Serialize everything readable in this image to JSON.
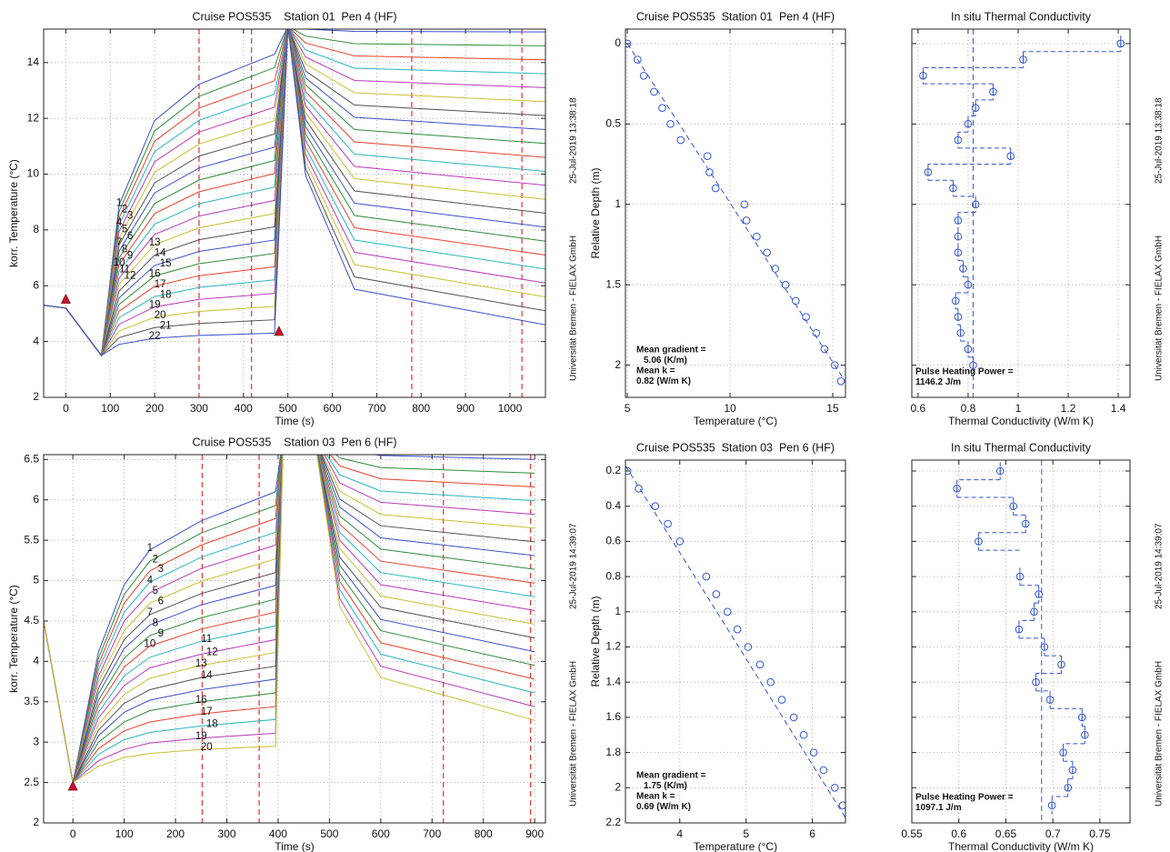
{
  "chart_data": [
    {
      "type": "line",
      "title": "Cruise POS535    Station 01  Pen 4 (HF)",
      "x_label": "Time (s)",
      "y_label": "korr. Temperature (°C)",
      "xlim": [
        -50,
        1080
      ],
      "ylim": [
        2,
        15.2
      ],
      "xticks": [
        0,
        100,
        200,
        300,
        400,
        500,
        600,
        700,
        800,
        900,
        1000
      ],
      "yticks": [
        2,
        4,
        6,
        8,
        10,
        12,
        14
      ],
      "grid": true,
      "colors": [
        "#3a4fc8",
        "#2e8b3a",
        "#e8412c",
        "#28b6c0",
        "#b83ab8",
        "#c8c030",
        "#505050"
      ],
      "x": [
        -50,
        0,
        80,
        120,
        200,
        300,
        470,
        500,
        540,
        650,
        1080
      ],
      "series": [
        {
          "name": "1",
          "values": [
            5.3,
            5.2,
            3.5,
            8.9,
            11.92,
            13.22,
            14.3,
            15.3,
            15.2,
            15.12,
            15.1
          ]
        },
        {
          "name": "2",
          "values": [
            5.3,
            5.2,
            3.5,
            8.66,
            11.55,
            12.79,
            13.82,
            15.3,
            14.95,
            14.68,
            14.6
          ]
        },
        {
          "name": "3",
          "values": [
            5.3,
            5.2,
            3.5,
            8.43,
            11.18,
            12.37,
            13.35,
            15.3,
            14.7,
            14.24,
            14.1
          ]
        },
        {
          "name": "4",
          "values": [
            5.3,
            5.2,
            3.5,
            8.19,
            10.81,
            11.93,
            12.87,
            15.3,
            14.45,
            13.8,
            13.6
          ]
        },
        {
          "name": "5",
          "values": [
            5.3,
            5.2,
            3.5,
            7.95,
            10.44,
            11.51,
            12.4,
            15.3,
            14.2,
            13.36,
            13.1
          ]
        },
        {
          "name": "6",
          "values": [
            5.3,
            5.2,
            3.5,
            7.71,
            10.07,
            11.08,
            11.92,
            15.3,
            13.95,
            12.92,
            12.6
          ]
        },
        {
          "name": "7",
          "values": [
            5.3,
            5.2,
            3.5,
            7.47,
            9.69,
            10.65,
            11.44,
            15.3,
            13.7,
            12.48,
            12.1
          ]
        },
        {
          "name": "8",
          "values": [
            5.3,
            5.2,
            3.5,
            7.24,
            9.33,
            10.22,
            10.97,
            15.3,
            13.45,
            12.04,
            11.6
          ]
        },
        {
          "name": "9",
          "values": [
            5.3,
            5.2,
            3.5,
            7.0,
            8.95,
            9.79,
            10.49,
            15.3,
            13.2,
            11.6,
            11.1
          ]
        },
        {
          "name": "10",
          "values": [
            5.3,
            5.2,
            3.5,
            6.76,
            8.59,
            9.37,
            10.02,
            15.3,
            12.95,
            11.16,
            10.6
          ]
        },
        {
          "name": "11",
          "values": [
            5.3,
            5.2,
            3.5,
            6.52,
            8.21,
            8.94,
            9.54,
            15.3,
            12.7,
            10.72,
            10.1
          ]
        },
        {
          "name": "12",
          "values": [
            5.3,
            5.2,
            3.5,
            6.28,
            7.84,
            8.5,
            9.06,
            15.3,
            12.45,
            10.28,
            9.6
          ]
        },
        {
          "name": "13",
          "values": [
            5.3,
            5.2,
            3.5,
            6.05,
            7.47,
            8.08,
            8.59,
            15.3,
            12.2,
            9.84,
            9.1
          ]
        },
        {
          "name": "14",
          "values": [
            5.3,
            5.2,
            3.5,
            5.81,
            7.1,
            7.65,
            8.11,
            15.3,
            11.95,
            9.4,
            8.6
          ]
        },
        {
          "name": "15",
          "values": [
            5.3,
            5.2,
            3.5,
            5.57,
            6.73,
            7.23,
            7.64,
            15.3,
            11.7,
            8.96,
            8.1
          ]
        },
        {
          "name": "16",
          "values": [
            5.3,
            5.2,
            3.5,
            5.33,
            6.35,
            6.79,
            7.16,
            15.3,
            11.45,
            8.52,
            7.6
          ]
        },
        {
          "name": "17",
          "values": [
            5.3,
            5.2,
            3.5,
            5.09,
            5.98,
            6.36,
            6.68,
            15.3,
            11.2,
            8.08,
            7.1
          ]
        },
        {
          "name": "18",
          "values": [
            5.3,
            5.2,
            3.5,
            4.86,
            5.61,
            5.94,
            6.21,
            15.3,
            10.95,
            7.64,
            6.6
          ]
        },
        {
          "name": "19",
          "values": [
            5.3,
            5.2,
            3.5,
            4.62,
            5.24,
            5.51,
            5.73,
            15.3,
            10.7,
            7.2,
            6.1
          ]
        },
        {
          "name": "20",
          "values": [
            5.3,
            5.2,
            3.5,
            4.38,
            4.87,
            5.08,
            5.26,
            15.3,
            10.45,
            6.76,
            5.6
          ]
        },
        {
          "name": "21",
          "values": [
            5.3,
            5.2,
            3.5,
            4.14,
            4.5,
            4.65,
            4.78,
            15.3,
            10.2,
            6.32,
            5.1
          ]
        },
        {
          "name": "22",
          "values": [
            5.3,
            5.2,
            3.5,
            3.9,
            4.12,
            4.22,
            4.3,
            15.3,
            9.95,
            5.88,
            4.6
          ]
        }
      ],
      "vlines": [
        300,
        418,
        779,
        1027
      ],
      "vline_color": "#e8413c",
      "markers": {
        "x": [
          0,
          480
        ],
        "y": [
          5.5,
          4.35
        ],
        "color": "#c8102e"
      }
    },
    {
      "type": "scatter",
      "title": "Cruise POS535  Station 01  Pen 4 (HF)",
      "x_label": "Temperature (°C)",
      "y_label": "Relative Depth (m)",
      "xlim": [
        4.91,
        15.62
      ],
      "ylim": [
        -0.09,
        2.2
      ],
      "y_reversed": true,
      "xticks": [
        5,
        10,
        15
      ],
      "yticks": [
        0,
        0.5,
        1,
        1.5,
        2
      ],
      "grid": true,
      "color": "#3355cc",
      "x": [
        5.0,
        5.5,
        5.8,
        6.3,
        6.7,
        7.1,
        7.6,
        8.9,
        9.0,
        9.3,
        10.7,
        10.8,
        11.3,
        11.8,
        12.2,
        12.7,
        13.2,
        13.7,
        14.2,
        14.6,
        15.1,
        15.4
      ],
      "y": [
        0,
        0.1,
        0.2,
        0.3,
        0.4,
        0.5,
        0.6,
        0.7,
        0.8,
        0.9,
        1.0,
        1.1,
        1.2,
        1.3,
        1.4,
        1.5,
        1.6,
        1.7,
        1.8,
        1.9,
        2.0,
        2.1
      ],
      "fit": {
        "x": [
          5.0,
          15.6
        ],
        "y": [
          0,
          2.1
        ]
      },
      "annotations": [
        "Mean gradient =",
        "5.06 (K/m)",
        "Mean k =",
        "0.82 (W/m K)"
      ],
      "side_text": [
        "Universität Bremen - FIELAX GmbH",
        "25-Jul-2019 13:38:18"
      ]
    },
    {
      "type": "step",
      "title": "In situ Thermal Conductivity",
      "x_label": "Thermal Conductivity (W/m K)",
      "xlim": [
        0.575,
        1.447
      ],
      "ylim": [
        -0.09,
        2.2
      ],
      "y_reversed": true,
      "xticks": [
        0.6,
        0.8,
        1,
        1.2,
        1.4
      ],
      "yticks": [
        0,
        0.5,
        1,
        1.5,
        2
      ],
      "ytick_labels": false,
      "grid": true,
      "color": "#3355cc",
      "y": [
        0,
        0.1,
        0.2,
        0.3,
        0.4,
        0.5,
        0.6,
        0.7,
        0.8,
        0.9,
        1.0,
        1.1,
        1.2,
        1.3,
        1.4,
        1.5,
        1.6,
        1.7,
        1.8,
        1.9,
        2.0
      ],
      "values": [
        1.41,
        1.02,
        0.62,
        0.9,
        0.83,
        0.8,
        0.76,
        0.97,
        0.64,
        0.74,
        0.83,
        0.76,
        0.76,
        0.76,
        0.78,
        0.8,
        0.75,
        0.76,
        0.77,
        0.8,
        0.82
      ],
      "mean": 0.82,
      "annotations": [
        "Pulse Heating Power =",
        "1146.2 J/m"
      ],
      "side_text": [
        "Universität Bremen - FIELAX GmbH",
        "25-Jul-2019 13:38:18"
      ]
    },
    {
      "type": "line",
      "title": "Cruise POS535    Station 03  Pen 6 (HF)",
      "x_label": "Time (s)",
      "y_label": "korr. Temperature (°C)",
      "xlim": [
        -57,
        921
      ],
      "ylim": [
        2,
        6.56
      ],
      "xticks": [
        0,
        100,
        200,
        300,
        400,
        500,
        600,
        700,
        800,
        900
      ],
      "yticks": [
        2,
        2.5,
        3,
        3.5,
        4,
        4.5,
        5,
        5.5,
        6,
        6.5
      ],
      "grid": true,
      "colors": [
        "#3a4fc8",
        "#2e8b3a",
        "#e8412c",
        "#28b6c0",
        "#b83ab8",
        "#c8c030",
        "#505050"
      ],
      "x": [
        -57,
        0,
        50,
        100,
        150,
        250,
        395,
        410,
        470,
        520,
        600,
        900
      ],
      "series": [
        {
          "name": "1",
          "values": [
            4.5,
            2.5,
            4.12,
            4.95,
            5.38,
            5.74,
            6.1,
            6.8,
            6.8,
            6.62,
            6.55,
            6.5
          ]
        },
        {
          "name": "2",
          "values": [
            4.5,
            2.5,
            4.04,
            4.83,
            5.24,
            5.59,
            5.93,
            6.8,
            6.8,
            6.52,
            6.4,
            6.33
          ]
        },
        {
          "name": "3",
          "values": [
            4.5,
            2.5,
            3.97,
            4.72,
            5.12,
            5.44,
            5.77,
            6.8,
            6.8,
            6.42,
            6.26,
            6.16
          ]
        },
        {
          "name": "4",
          "values": [
            4.5,
            2.5,
            3.9,
            4.61,
            4.98,
            5.29,
            5.6,
            6.8,
            6.8,
            6.31,
            6.11,
            5.99
          ]
        },
        {
          "name": "5",
          "values": [
            4.5,
            2.5,
            3.82,
            4.5,
            4.85,
            5.15,
            5.44,
            6.8,
            6.8,
            6.21,
            5.97,
            5.82
          ]
        },
        {
          "name": "6",
          "values": [
            4.5,
            2.5,
            3.75,
            4.38,
            4.72,
            4.99,
            5.27,
            6.8,
            6.8,
            6.11,
            5.82,
            5.65
          ]
        },
        {
          "name": "7",
          "values": [
            4.5,
            2.5,
            3.67,
            4.27,
            4.58,
            4.84,
            5.1,
            6.8,
            6.8,
            6.01,
            5.68,
            5.48
          ]
        },
        {
          "name": "8",
          "values": [
            4.5,
            2.5,
            3.6,
            4.16,
            4.45,
            4.7,
            4.94,
            6.8,
            6.8,
            5.91,
            5.53,
            5.31
          ]
        },
        {
          "name": "9",
          "values": [
            4.5,
            2.5,
            3.52,
            4.04,
            4.32,
            4.54,
            4.77,
            6.8,
            6.8,
            5.8,
            5.39,
            5.14
          ]
        },
        {
          "name": "10",
          "values": [
            4.5,
            2.5,
            3.45,
            3.93,
            4.19,
            4.4,
            4.61,
            6.8,
            6.8,
            5.7,
            5.24,
            4.97
          ]
        },
        {
          "name": "11",
          "values": [
            4.5,
            2.5,
            3.37,
            3.82,
            4.05,
            4.25,
            4.44,
            6.8,
            6.8,
            5.6,
            5.1,
            4.8
          ]
        },
        {
          "name": "12",
          "values": [
            4.5,
            2.5,
            3.3,
            3.7,
            3.92,
            4.09,
            4.27,
            6.8,
            6.8,
            5.5,
            4.95,
            4.63
          ]
        },
        {
          "name": "13",
          "values": [
            4.5,
            2.5,
            3.22,
            3.59,
            3.79,
            3.95,
            4.11,
            6.8,
            6.8,
            5.4,
            4.81,
            4.46
          ]
        },
        {
          "name": "14",
          "values": [
            4.5,
            2.5,
            3.15,
            3.48,
            3.65,
            3.8,
            3.94,
            6.8,
            6.8,
            5.29,
            4.67,
            4.29
          ]
        },
        {
          "name": null,
          "values": [
            4.5,
            2.5,
            3.08,
            3.37,
            3.52,
            3.65,
            3.78,
            6.8,
            6.8,
            5.19,
            4.52,
            4.12
          ]
        },
        {
          "name": "16",
          "values": [
            4.5,
            2.5,
            3.0,
            3.25,
            3.39,
            3.5,
            3.61,
            6.8,
            6.8,
            5.09,
            4.38,
            3.95
          ]
        },
        {
          "name": "17",
          "values": [
            4.5,
            2.5,
            2.92,
            3.14,
            3.25,
            3.35,
            3.44,
            6.8,
            6.8,
            4.99,
            4.23,
            3.78
          ]
        },
        {
          "name": "18",
          "values": [
            4.5,
            2.5,
            2.85,
            3.03,
            3.12,
            3.2,
            3.28,
            6.8,
            6.8,
            4.89,
            4.09,
            3.61
          ]
        },
        {
          "name": "19",
          "values": [
            4.5,
            2.5,
            2.77,
            2.91,
            2.99,
            3.05,
            3.11,
            6.8,
            6.8,
            4.78,
            3.94,
            3.44
          ]
        },
        {
          "name": "20",
          "values": [
            4.5,
            2.5,
            2.7,
            2.81,
            2.86,
            2.91,
            2.95,
            6.8,
            6.8,
            4.68,
            3.8,
            3.27
          ]
        }
      ],
      "vlines": [
        252,
        363,
        722,
        892
      ],
      "vline_color": "#e8413c",
      "markers": {
        "x": [
          0
        ],
        "y": [
          2.45
        ],
        "color": "#c8102e"
      }
    },
    {
      "type": "scatter",
      "title": "Cruise POS535  Station 03  Pen 6 (HF)",
      "x_label": "Temperature (°C)",
      "y_label": "Relative Depth (m)",
      "xlim": [
        3.18,
        6.5
      ],
      "ylim": [
        0.138,
        2.2
      ],
      "y_reversed": true,
      "xticks": [
        4,
        5,
        6
      ],
      "yticks": [
        0.2,
        0.4,
        0.6,
        0.8,
        1,
        1.2,
        1.4,
        1.6,
        1.8,
        2,
        2.2
      ],
      "grid": true,
      "color": "#3355cc",
      "x": [
        3.21,
        3.38,
        3.63,
        3.82,
        4.0,
        4.4,
        4.55,
        4.72,
        4.87,
        5.03,
        5.21,
        5.37,
        5.54,
        5.72,
        5.87,
        6.02,
        6.17,
        6.34,
        6.46
      ],
      "y": [
        0.2,
        0.3,
        0.4,
        0.5,
        0.6,
        0.8,
        0.9,
        1.0,
        1.1,
        1.2,
        1.3,
        1.4,
        1.5,
        1.6,
        1.7,
        1.8,
        1.9,
        2.0,
        2.1
      ],
      "fit": {
        "x": [
          3.18,
          6.5
        ],
        "y": [
          0.17,
          2.17
        ]
      },
      "annotations": [
        "Mean gradient =",
        "1.75 (K/m)",
        "Mean k =",
        "0.69 (W/m K)"
      ],
      "side_text": [
        "Universität Bremen - FIELAX GmbH",
        "25-Jul-2019 14:39:07"
      ]
    },
    {
      "type": "step",
      "title": "In situ Thermal Conductivity",
      "x_label": "Thermal Conductivity (W/m K)",
      "xlim": [
        0.55,
        0.782
      ],
      "ylim": [
        0.138,
        2.2
      ],
      "y_reversed": true,
      "xticks": [
        0.55,
        0.6,
        0.65,
        0.7,
        0.75
      ],
      "yticks": [
        0.2,
        0.4,
        0.6,
        0.8,
        1,
        1.2,
        1.4,
        1.6,
        1.8,
        2,
        2.2
      ],
      "ytick_labels": false,
      "grid": true,
      "color": "#3355cc",
      "y": [
        0.2,
        0.3,
        0.4,
        0.5,
        0.6,
        0.8,
        0.9,
        1.0,
        1.1,
        1.2,
        1.3,
        1.4,
        1.5,
        1.6,
        1.7,
        1.8,
        1.9,
        2.0,
        2.1
      ],
      "values": [
        0.644,
        0.598,
        0.658,
        0.671,
        0.621,
        0.665,
        0.685,
        0.68,
        0.664,
        0.691,
        0.709,
        0.682,
        0.697,
        0.731,
        0.734,
        0.711,
        0.721,
        0.716,
        0.699
      ],
      "mean": 0.688,
      "annotations": [
        "Pulse Heating Power =",
        "1097.1 J/m"
      ],
      "side_text": [
        "Universität Bremen - FIELAX GmbH",
        "25-Jul-2019 14:39:07"
      ]
    }
  ]
}
